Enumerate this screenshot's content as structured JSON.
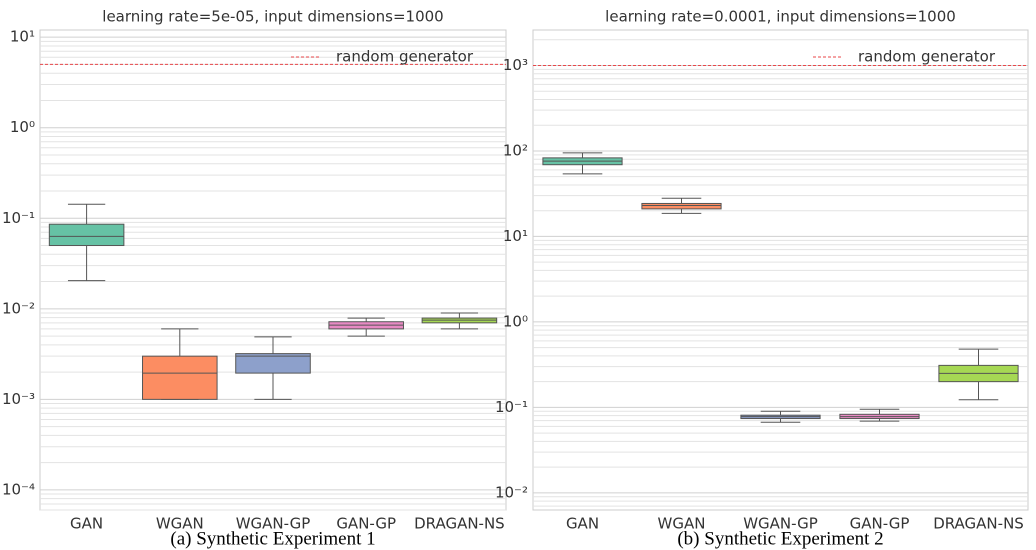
{
  "chart_data": [
    {
      "type": "box",
      "title": "learning rate=5e-05, input dimensions=1000",
      "caption": "(a)  Synthetic Experiment 1",
      "categories": [
        "GAN",
        "WGAN",
        "WGAN-GP",
        "GAN-GP",
        "DRAGAN-NS"
      ],
      "colors": [
        "#66c2a5",
        "#fc8d62",
        "#8da0cb",
        "#e78ac3",
        "#a6d854"
      ],
      "boxes": [
        {
          "min": 0.0205,
          "q1": 0.05,
          "median": 0.063,
          "q3": 0.086,
          "max": 0.143
        },
        {
          "min": 0.001,
          "q1": 0.001,
          "median": 0.00195,
          "q3": 0.003,
          "max": 0.006
        },
        {
          "min": 0.001,
          "q1": 0.00195,
          "median": 0.003,
          "q3": 0.0032,
          "max": 0.0049
        },
        {
          "min": 0.005,
          "q1": 0.006,
          "median": 0.0066,
          "q3": 0.0072,
          "max": 0.0079
        },
        {
          "min": 0.006,
          "q1": 0.007,
          "median": 0.0075,
          "q3": 0.0079,
          "max": 0.009
        }
      ],
      "reference_lines": [
        {
          "name": "random generator",
          "value": 5,
          "color": "#e8474a"
        }
      ],
      "legend": "upper right",
      "log_scale": true,
      "grid": true,
      "ylim": [
        6e-05,
        12
      ],
      "yticks": [
        {
          "value": 0.0001,
          "label": "10⁻⁴"
        },
        {
          "value": 0.001,
          "label": "10⁻³"
        },
        {
          "value": 0.01,
          "label": "10⁻²"
        },
        {
          "value": 0.1,
          "label": "10⁻¹"
        },
        {
          "value": 1,
          "label": "10⁰"
        },
        {
          "value": 10,
          "label": "10¹"
        }
      ]
    },
    {
      "type": "box",
      "title": "learning rate=0.0001, input dimensions=1000",
      "caption": "(b)  Synthetic Experiment 2",
      "categories": [
        "GAN",
        "WGAN",
        "WGAN-GP",
        "GAN-GP",
        "DRAGAN-NS"
      ],
      "colors": [
        "#66c2a5",
        "#fc8d62",
        "#8da0cb",
        "#e78ac3",
        "#a6d854"
      ],
      "boxes": [
        {
          "min": 54,
          "q1": 69,
          "median": 76,
          "q3": 83,
          "max": 95
        },
        {
          "min": 18.6,
          "q1": 21,
          "median": 23,
          "q3": 24.3,
          "max": 28
        },
        {
          "min": 0.067,
          "q1": 0.074,
          "median": 0.078,
          "q3": 0.081,
          "max": 0.09
        },
        {
          "min": 0.069,
          "q1": 0.074,
          "median": 0.078,
          "q3": 0.083,
          "max": 0.095
        },
        {
          "min": 0.123,
          "q1": 0.2,
          "median": 0.25,
          "q3": 0.31,
          "max": 0.48
        }
      ],
      "reference_lines": [
        {
          "name": "random generator",
          "value": 1000,
          "color": "#e8474a"
        }
      ],
      "legend": "upper right",
      "log_scale": true,
      "grid": true,
      "ylim": [
        0.0063,
        2600
      ],
      "yticks": [
        {
          "value": 0.01,
          "label": "10⁻²"
        },
        {
          "value": 0.1,
          "label": "10⁻¹"
        },
        {
          "value": 1,
          "label": "10⁰"
        },
        {
          "value": 10,
          "label": "10¹"
        },
        {
          "value": 100,
          "label": "10²"
        },
        {
          "value": 1000,
          "label": "10³"
        }
      ]
    }
  ]
}
